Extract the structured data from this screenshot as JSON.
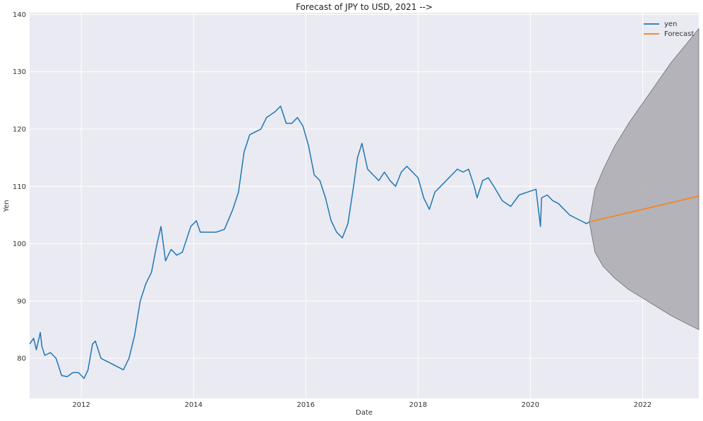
{
  "chart_data": {
    "type": "line",
    "title": "Forecast of JPY to USD, 2021 -->",
    "xlabel": "Date",
    "ylabel": "Yen",
    "xlim": [
      2011.08,
      2023.0
    ],
    "ylim": [
      73,
      140.3
    ],
    "grid": true,
    "legend_position": "top-right",
    "x_ticks": [
      "2012",
      "2014",
      "2016",
      "2018",
      "2020",
      "2022"
    ],
    "y_ticks": [
      "80",
      "90",
      "100",
      "110",
      "120",
      "130",
      "140"
    ],
    "colors": {
      "background": "#eaeaf2",
      "grid": "#ffffff",
      "yen": "#1f77b4",
      "forecast": "#ff7f0e",
      "confidence": "#a9a9af"
    },
    "series": [
      {
        "name": "yen",
        "x": [
          2011.08,
          2011.15,
          2011.2,
          2011.27,
          2011.3,
          2011.35,
          2011.45,
          2011.55,
          2011.65,
          2011.75,
          2011.85,
          2011.95,
          2012.05,
          2012.12,
          2012.2,
          2012.25,
          2012.35,
          2012.45,
          2012.55,
          2012.65,
          2012.75,
          2012.85,
          2012.95,
          2013.05,
          2013.15,
          2013.25,
          2013.35,
          2013.42,
          2013.5,
          2013.6,
          2013.7,
          2013.8,
          2013.95,
          2014.05,
          2014.12,
          2014.25,
          2014.4,
          2014.55,
          2014.7,
          2014.8,
          2014.9,
          2015.0,
          2015.1,
          2015.2,
          2015.3,
          2015.45,
          2015.55,
          2015.65,
          2015.75,
          2015.85,
          2015.95,
          2016.05,
          2016.15,
          2016.25,
          2016.35,
          2016.45,
          2016.55,
          2016.65,
          2016.75,
          2016.85,
          2016.92,
          2017.0,
          2017.1,
          2017.2,
          2017.3,
          2017.4,
          2017.5,
          2017.6,
          2017.7,
          2017.8,
          2017.9,
          2018.0,
          2018.1,
          2018.2,
          2018.3,
          2018.4,
          2018.5,
          2018.6,
          2018.7,
          2018.8,
          2018.9,
          2019.0,
          2019.05,
          2019.15,
          2019.25,
          2019.35,
          2019.5,
          2019.65,
          2019.8,
          2019.95,
          2020.1,
          2020.18,
          2020.2,
          2020.3,
          2020.4,
          2020.5,
          2020.6,
          2020.7,
          2020.8,
          2020.9,
          2021.0,
          2021.05
        ],
        "values": [
          82.5,
          83.5,
          81.5,
          84.5,
          82.0,
          80.5,
          81.0,
          80.0,
          77.0,
          76.8,
          77.5,
          77.5,
          76.5,
          78.0,
          82.5,
          83.0,
          80.0,
          79.5,
          79.0,
          78.5,
          78.0,
          80.0,
          84.0,
          90.0,
          93.0,
          95.0,
          100.0,
          103.0,
          97.0,
          99.0,
          98.0,
          98.5,
          103.0,
          104.0,
          102.0,
          102.0,
          102.0,
          102.5,
          106.0,
          109.0,
          116.0,
          119.0,
          119.5,
          120.0,
          122.0,
          123.0,
          124.0,
          121.0,
          121.0,
          122.0,
          120.5,
          117.0,
          112.0,
          111.0,
          108.0,
          104.0,
          102.0,
          101.0,
          103.5,
          110.0,
          115.0,
          117.5,
          113.0,
          112.0,
          111.0,
          112.5,
          111.0,
          110.0,
          112.5,
          113.5,
          112.5,
          111.5,
          108.0,
          106.0,
          109.0,
          110.0,
          111.0,
          112.0,
          113.0,
          112.5,
          113.0,
          110.0,
          108.0,
          111.0,
          111.5,
          110.0,
          107.5,
          106.5,
          108.5,
          109.0,
          109.5,
          103.0,
          108.0,
          108.5,
          107.5,
          107.0,
          106.0,
          105.0,
          104.5,
          104.0,
          103.5,
          103.8
        ]
      },
      {
        "name": "Forecast",
        "x": [
          2021.05,
          2023.0
        ],
        "values": [
          103.8,
          108.3
        ]
      }
    ],
    "confidence_interval": {
      "x": [
        2021.05,
        2021.15,
        2021.3,
        2021.5,
        2021.75,
        2022.0,
        2022.25,
        2022.5,
        2022.75,
        2023.0
      ],
      "lower": [
        103.8,
        98.5,
        96.0,
        94.0,
        92.0,
        90.5,
        89.0,
        87.5,
        86.2,
        85.0
      ],
      "upper": [
        103.8,
        109.5,
        113.0,
        117.0,
        121.0,
        124.5,
        128.0,
        131.5,
        134.5,
        137.5
      ]
    }
  }
}
